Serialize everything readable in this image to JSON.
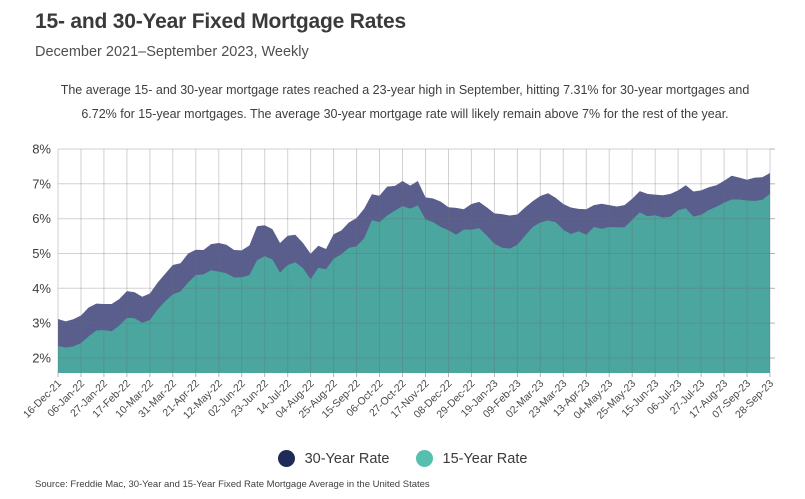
{
  "header": {
    "title": "15- and 30-Year Fixed Mortgage Rates",
    "subtitle": "December 2021–September 2023, Weekly"
  },
  "annotation": "The average 15- and 30-year mortgage rates reached a 23-year high in September, hitting 7.31% for 30-year mortgages and 6.72% for 15-year mortgages. The average 30-year mortgage rate will likely remain above 7% for the rest of the year.",
  "legend": [
    {
      "label": "30-Year Rate",
      "color": "#1f2a58"
    },
    {
      "label": "15-Year Rate",
      "color": "#55c0af"
    }
  ],
  "source": "Source:  Freddie Mac, 30-Year  and 15-Year Fixed Rate Mortgage Average in the United States",
  "chart_data": {
    "type": "area",
    "title": "15- and 30-Year Fixed Mortgage Rates",
    "subtitle": "December 2021–September 2023, Weekly",
    "ylabel_format": "percent",
    "ylim": [
      1.57,
      8
    ],
    "grid": true,
    "legend_position": "bottom",
    "y_ticks": [
      "8%",
      "7%",
      "6%",
      "5%",
      "4%",
      "3%",
      "2%"
    ],
    "points_per_tick": 3,
    "x_tick_labels": [
      "16-Dec-21",
      "06-Jan-22",
      "27-Jan-22",
      "17-Feb-22",
      "10-Mar-22",
      "31-Mar-22",
      "21-Apr-22",
      "12-May-22",
      "02-Jun-22",
      "23-Jun-22",
      "14-Jul-22",
      "04-Aug-22",
      "25-Aug-22",
      "15-Sep-22",
      "06-Oct-22",
      "27-Oct-22",
      "17-Nov-22",
      "08-Dec-22",
      "29-Dec-22",
      "19-Jan-23",
      "09-Feb-23",
      "02-Mar-23",
      "23-Mar-23",
      "13-Apr-23",
      "04-May-23",
      "25-May-23",
      "15-Jun-23",
      "06-Jul-23",
      "27-Jul-23",
      "17-Aug-23",
      "07-Sep-23",
      "28-Sep-23"
    ],
    "series": [
      {
        "name": "30-Year Rate",
        "fill": "#5a5e8c",
        "legend_color": "#1f2a58",
        "values": [
          3.12,
          3.05,
          3.11,
          3.22,
          3.45,
          3.56,
          3.55,
          3.55,
          3.69,
          3.92,
          3.89,
          3.76,
          3.85,
          4.16,
          4.42,
          4.67,
          4.72,
          5.0,
          5.11,
          5.1,
          5.27,
          5.3,
          5.25,
          5.1,
          5.09,
          5.23,
          5.78,
          5.81,
          5.7,
          5.3,
          5.51,
          5.54,
          5.3,
          4.99,
          5.22,
          5.13,
          5.55,
          5.66,
          5.89,
          6.02,
          6.29,
          6.7,
          6.66,
          6.92,
          6.94,
          7.08,
          6.95,
          7.08,
          6.61,
          6.58,
          6.49,
          6.33,
          6.31,
          6.27,
          6.42,
          6.48,
          6.33,
          6.15,
          6.13,
          6.09,
          6.12,
          6.32,
          6.5,
          6.65,
          6.73,
          6.6,
          6.42,
          6.32,
          6.28,
          6.27,
          6.39,
          6.43,
          6.39,
          6.35,
          6.39,
          6.57,
          6.79,
          6.71,
          6.69,
          6.67,
          6.71,
          6.81,
          6.96,
          6.78,
          6.81,
          6.9,
          6.96,
          7.09,
          7.23,
          7.18,
          7.12,
          7.18,
          7.19,
          7.31
        ]
      },
      {
        "name": "15-Year Rate",
        "fill": "#4aa69e",
        "legend_color": "#55c0af",
        "values": [
          2.34,
          2.3,
          2.33,
          2.43,
          2.62,
          2.79,
          2.8,
          2.77,
          2.93,
          3.15,
          3.14,
          3.01,
          3.09,
          3.39,
          3.63,
          3.83,
          3.91,
          4.17,
          4.38,
          4.4,
          4.52,
          4.48,
          4.43,
          4.31,
          4.32,
          4.38,
          4.81,
          4.92,
          4.83,
          4.45,
          4.67,
          4.75,
          4.58,
          4.26,
          4.59,
          4.55,
          4.85,
          4.98,
          5.16,
          5.21,
          5.44,
          5.96,
          5.9,
          6.09,
          6.23,
          6.36,
          6.29,
          6.38,
          5.98,
          5.9,
          5.76,
          5.67,
          5.54,
          5.69,
          5.68,
          5.73,
          5.52,
          5.28,
          5.17,
          5.14,
          5.25,
          5.51,
          5.76,
          5.89,
          5.95,
          5.9,
          5.68,
          5.56,
          5.64,
          5.54,
          5.76,
          5.71,
          5.76,
          5.75,
          5.75,
          5.97,
          6.18,
          6.07,
          6.1,
          6.03,
          6.06,
          6.24,
          6.3,
          6.06,
          6.11,
          6.25,
          6.34,
          6.46,
          6.55,
          6.55,
          6.52,
          6.51,
          6.54,
          6.72
        ]
      }
    ]
  }
}
